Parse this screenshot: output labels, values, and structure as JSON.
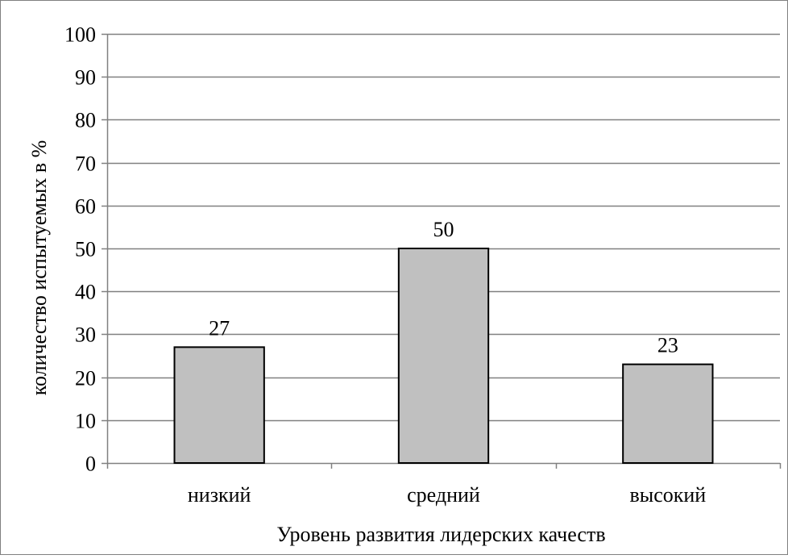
{
  "chart_data": {
    "type": "bar",
    "title": "",
    "categories": [
      "низкий",
      "средний",
      "высокий"
    ],
    "values": [
      27,
      50,
      23
    ],
    "data_labels": [
      "27",
      "50",
      "23"
    ],
    "xlabel": "Уровень развития лидерских качеств",
    "ylabel": "количество испытуемых в %",
    "ylim": [
      0,
      100
    ],
    "yticks": [
      0,
      10,
      20,
      30,
      40,
      50,
      60,
      70,
      80,
      90,
      100
    ],
    "ytick_labels": [
      "0",
      "10",
      "20",
      "30",
      "40",
      "50",
      "60",
      "70",
      "80",
      "90",
      "100"
    ],
    "grid": true,
    "legend": "none",
    "colors": {
      "bar_fill": "#c0c0c0",
      "bar_stroke": "#000000",
      "grid": "#808080",
      "axis": "#808080",
      "frame": "#808080"
    }
  }
}
